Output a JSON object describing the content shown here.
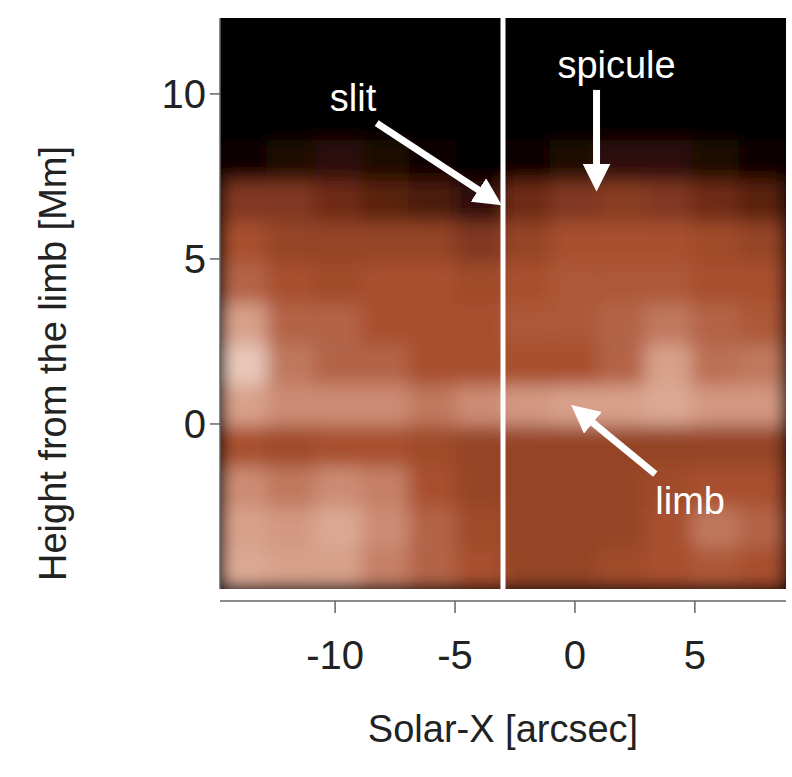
{
  "chart_data": {
    "type": "image",
    "x_label": "Solar-X [arcsec]",
    "y_label": "Height from the limb [Mm]",
    "xlim": [
      -14.8,
      8.8
    ],
    "ylim": [
      -5.0,
      12.3
    ],
    "xticks": [
      -10,
      -5,
      0,
      5
    ],
    "yticks": [
      0,
      5,
      10
    ],
    "cells": [
      [
        0,
        0,
        0,
        0,
        0,
        0,
        0,
        0,
        0,
        0,
        0,
        0
      ],
      [
        0,
        0,
        0,
        0,
        0,
        0,
        0,
        0,
        0,
        0,
        0,
        0
      ],
      [
        0,
        0,
        0,
        0,
        0,
        0,
        0,
        0,
        0,
        0,
        0,
        0
      ],
      [
        0.05,
        0.1,
        0.15,
        0.1,
        0.05,
        0.0,
        0.05,
        0.1,
        0.15,
        0.15,
        0.1,
        0.05
      ],
      [
        0.4,
        0.4,
        0.35,
        0.3,
        0.25,
        0.15,
        0.35,
        0.4,
        0.42,
        0.4,
        0.35,
        0.3
      ],
      [
        0.5,
        0.45,
        0.45,
        0.45,
        0.45,
        0.4,
        0.45,
        0.5,
        0.5,
        0.5,
        0.48,
        0.45
      ],
      [
        0.55,
        0.5,
        0.48,
        0.5,
        0.5,
        0.48,
        0.5,
        0.52,
        0.52,
        0.52,
        0.5,
        0.5
      ],
      [
        0.7,
        0.55,
        0.55,
        0.5,
        0.5,
        0.5,
        0.52,
        0.52,
        0.55,
        0.6,
        0.55,
        0.52
      ],
      [
        0.8,
        0.6,
        0.55,
        0.55,
        0.5,
        0.5,
        0.5,
        0.5,
        0.55,
        0.7,
        0.58,
        0.6
      ],
      [
        0.7,
        0.65,
        0.65,
        0.65,
        0.6,
        0.65,
        0.68,
        0.7,
        0.7,
        0.72,
        0.68,
        0.68
      ],
      [
        0.5,
        0.48,
        0.5,
        0.5,
        0.48,
        0.45,
        0.45,
        0.45,
        0.45,
        0.45,
        0.45,
        0.45
      ],
      [
        0.65,
        0.6,
        0.65,
        0.62,
        0.5,
        0.45,
        0.45,
        0.45,
        0.45,
        0.48,
        0.5,
        0.5
      ],
      [
        0.7,
        0.68,
        0.72,
        0.65,
        0.55,
        0.48,
        0.45,
        0.45,
        0.45,
        0.5,
        0.6,
        0.55
      ],
      [
        0.72,
        0.7,
        0.7,
        0.62,
        0.55,
        0.5,
        0.45,
        0.45,
        0.48,
        0.5,
        0.52,
        0.5
      ]
    ],
    "slit_x": -3,
    "annotations": [
      {
        "text": "slit",
        "x": -3,
        "y": 6.6
      },
      {
        "text": "spicule",
        "x": 0.9,
        "y": 7.0
      },
      {
        "text": "limb",
        "x": -0.2,
        "y": 0.6
      }
    ]
  }
}
